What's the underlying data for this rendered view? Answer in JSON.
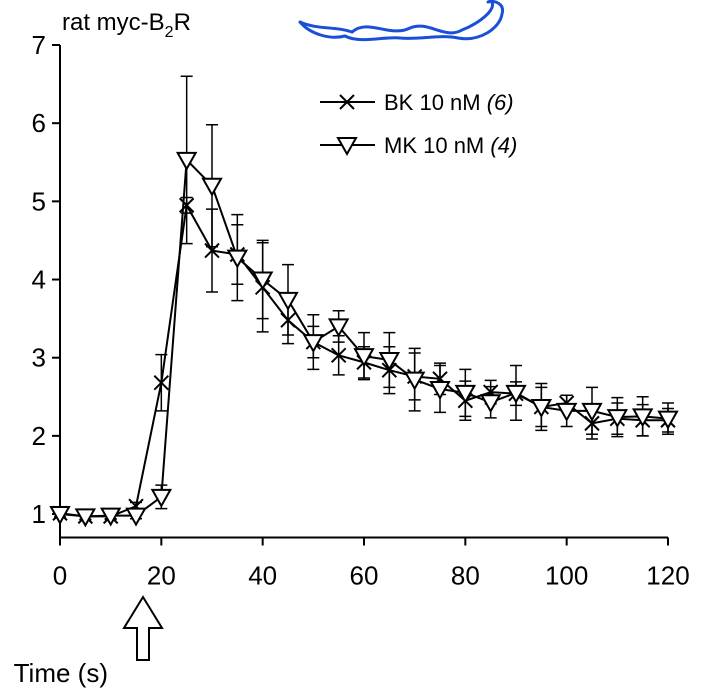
{
  "chart_data": {
    "type": "line",
    "title_parts": [
      "rat myc-B",
      "2",
      "R"
    ],
    "x_label": "Time (s)",
    "x": [
      0,
      5,
      10,
      15,
      20,
      25,
      30,
      35,
      40,
      45,
      50,
      55,
      60,
      65,
      70,
      75,
      80,
      85,
      90,
      95,
      100,
      105,
      110,
      115,
      120
    ],
    "xlim": [
      0,
      120
    ],
    "xticks": [
      0,
      20,
      40,
      60,
      80,
      100,
      120
    ],
    "ylim": [
      0.7,
      7
    ],
    "yticks": [
      1,
      2,
      3,
      4,
      5,
      6,
      7
    ],
    "legend": "upper right",
    "series": [
      {
        "name": "BK 10 nM",
        "n_label": "(6)",
        "marker": "x",
        "color": "#000000",
        "values": [
          1.01,
          0.97,
          0.97,
          1.1,
          2.68,
          4.95,
          4.37,
          4.32,
          3.9,
          3.48,
          3.2,
          3.03,
          2.94,
          2.84,
          2.76,
          2.73,
          2.45,
          2.56,
          2.54,
          2.37,
          2.42,
          2.16,
          2.22,
          2.2,
          2.2
        ],
        "errors": [
          0.05,
          0.04,
          0.04,
          0.05,
          0.36,
          0.1,
          0.53,
          0.38,
          0.57,
          0.3,
          0.2,
          0.25,
          0.2,
          0.3,
          0.3,
          0.2,
          0.25,
          0.15,
          0.15,
          0.25,
          0.1,
          0.2,
          0.2,
          0.2,
          0.15
        ]
      },
      {
        "name": "MK 10 nM",
        "n_label": "(4)",
        "marker": "triangle-down",
        "color": "#000000",
        "values": [
          1.0,
          0.97,
          0.98,
          0.98,
          1.22,
          5.53,
          5.2,
          4.28,
          4.0,
          3.74,
          3.2,
          3.4,
          3.02,
          2.97,
          2.72,
          2.6,
          2.55,
          2.43,
          2.55,
          2.37,
          2.32,
          2.32,
          2.24,
          2.25,
          2.22
        ],
        "errors": [
          0.04,
          0.04,
          0.04,
          0.04,
          0.15,
          1.07,
          0.78,
          0.55,
          0.5,
          0.45,
          0.35,
          0.2,
          0.3,
          0.35,
          0.4,
          0.3,
          0.3,
          0.2,
          0.35,
          0.3,
          0.2,
          0.3,
          0.25,
          0.25,
          0.2
        ]
      }
    ]
  }
}
